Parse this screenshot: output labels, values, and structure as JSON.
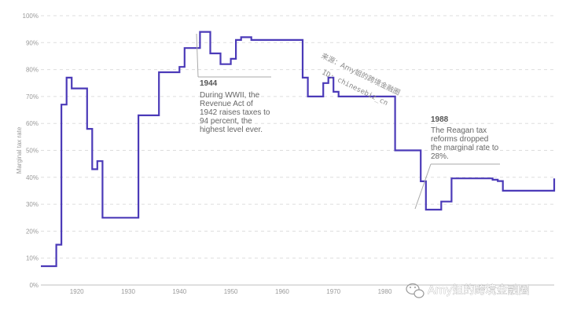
{
  "chart_data": {
    "type": "line",
    "step": true,
    "ylabel": "Marginal tax rate",
    "xlabel": "",
    "ylim": [
      0,
      100
    ],
    "xlim": [
      1913,
      2013
    ],
    "grid": true,
    "y_ticks": [
      "0%",
      "10%",
      "20%",
      "30%",
      "40%",
      "50%",
      "60%",
      "70%",
      "80%",
      "90%",
      "100%"
    ],
    "x_ticks": [
      "1920",
      "1930",
      "1940",
      "1950",
      "1960",
      "1970",
      "1980"
    ],
    "color": "#4b3ab8",
    "series": [
      {
        "x": [
          1913,
          1916,
          1917,
          1918,
          1919,
          1922,
          1923,
          1924,
          1925,
          1932,
          1936,
          1940,
          1941,
          1942,
          1944,
          1946,
          1948,
          1950,
          1951,
          1952,
          1954,
          1964,
          1965,
          1968,
          1969,
          1970,
          1971,
          1982,
          1987,
          1988,
          1991,
          1993,
          2001,
          2002,
          2003,
          2013
        ],
        "y": [
          7,
          15,
          67,
          77,
          73,
          58,
          43,
          46,
          25,
          63,
          79,
          81,
          88,
          88,
          94,
          86,
          82,
          84,
          91,
          92,
          91,
          77,
          70,
          75,
          77,
          71.75,
          70,
          50,
          38.5,
          28,
          31,
          39.6,
          39.1,
          38.6,
          35,
          39.6
        ]
      }
    ],
    "annotations": [
      {
        "year": "1944",
        "text": [
          "During WWII, the",
          "Revenue Act of",
          "1942 raises taxes to",
          "94 percent, the",
          "highest level ever."
        ]
      },
      {
        "year": "1988",
        "text": [
          "The Reagan tax",
          "reforms dropped",
          "the marginal rate to",
          "28%."
        ]
      }
    ]
  },
  "watermark": {
    "source": "来源：Amy姐的跨境金融圈",
    "id": "ID: chinesebiz_cn",
    "bottom": "Amy姐的跨境金融圈"
  }
}
